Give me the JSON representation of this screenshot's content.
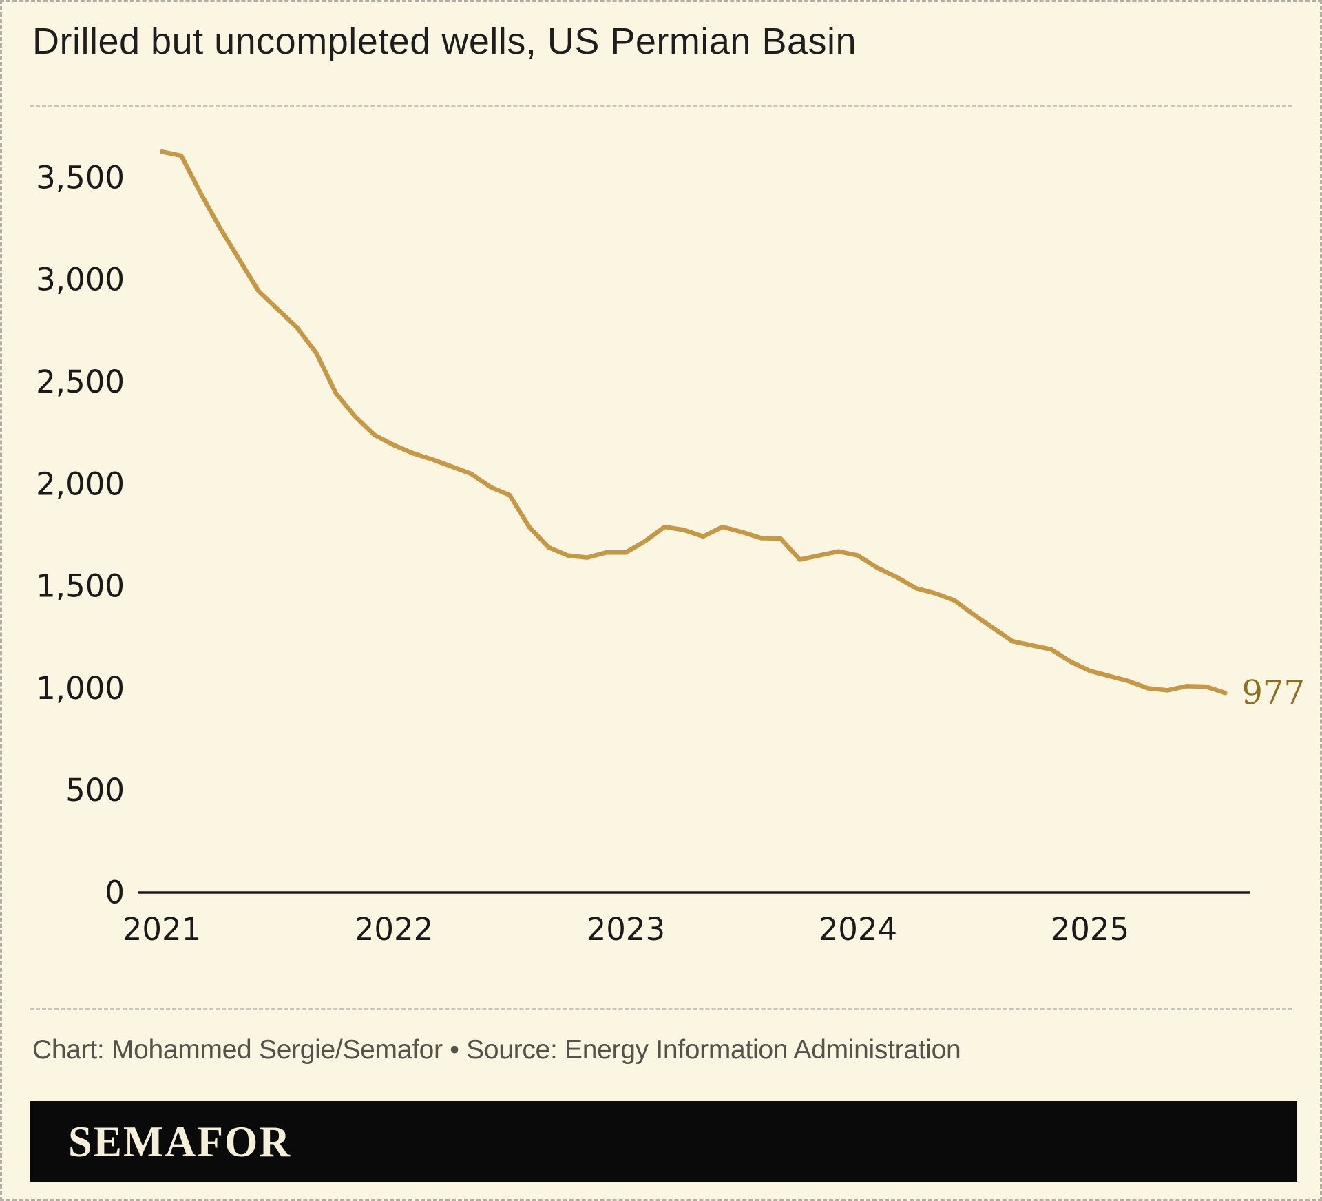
{
  "page": {
    "background_color": "#faf6e1",
    "border_color": "#b2b0a6"
  },
  "header": {
    "title": "Drilled but uncompleted wells, US Permian Basin"
  },
  "chart_data": {
    "type": "line",
    "title": "Drilled but uncompleted wells, US Permian Basin",
    "series_name": "Drilled but uncompleted wells, US Permian Basin",
    "x": [
      "2021-01",
      "2021-02",
      "2021-03",
      "2021-04",
      "2021-05",
      "2021-06",
      "2021-07",
      "2021-08",
      "2021-09",
      "2021-10",
      "2021-11",
      "2021-12",
      "2022-01",
      "2022-02",
      "2022-03",
      "2022-04",
      "2022-05",
      "2022-06",
      "2022-07",
      "2022-08",
      "2022-09",
      "2022-10",
      "2022-11",
      "2022-12",
      "2023-01",
      "2023-02",
      "2023-03",
      "2023-04",
      "2023-05",
      "2023-06",
      "2023-07",
      "2023-08",
      "2023-09",
      "2023-10",
      "2023-11",
      "2023-12",
      "2024-01",
      "2024-02",
      "2024-03",
      "2024-04",
      "2024-05",
      "2024-06",
      "2024-07",
      "2024-08",
      "2024-09",
      "2024-10",
      "2024-11",
      "2024-12",
      "2025-01",
      "2025-02",
      "2025-03",
      "2025-04",
      "2025-05",
      "2025-06",
      "2025-07",
      "2025-08"
    ],
    "values": [
      3627,
      3608,
      3425,
      3255,
      3100,
      2945,
      2855,
      2765,
      2640,
      2445,
      2330,
      2240,
      2190,
      2150,
      2120,
      2085,
      2050,
      1985,
      1945,
      1790,
      1690,
      1650,
      1640,
      1665,
      1665,
      1720,
      1790,
      1775,
      1743,
      1790,
      1765,
      1735,
      1733,
      1630,
      1650,
      1670,
      1650,
      1590,
      1545,
      1490,
      1465,
      1430,
      1360,
      1295,
      1230,
      1210,
      1190,
      1130,
      1085,
      1060,
      1035,
      1000,
      990,
      1010,
      1008,
      977
    ],
    "last_value": 977,
    "end_label": "977",
    "y_ticks": [
      "0",
      "500",
      "1,000",
      "1,500",
      "2,000",
      "2,500",
      "3,000",
      "3,500"
    ],
    "y_tick_values": [
      0,
      500,
      1000,
      1500,
      2000,
      2500,
      3000,
      3500
    ],
    "x_ticks": [
      "2021",
      "2022",
      "2023",
      "2024",
      "2025"
    ],
    "ylim": [
      0,
      3700
    ],
    "grid": false,
    "legend": "none",
    "line_color": "#c69745",
    "end_label_color": "#8c6e23",
    "axis_color": "#1a1a1a"
  },
  "footer": {
    "credit": "Chart: Mohammed Sergie/Semafor • Source: Energy Information Administration"
  },
  "brand": {
    "logo_text": "SEMAFOR",
    "bar_color": "#0a0a0a",
    "text_color": "#f5efd9"
  }
}
